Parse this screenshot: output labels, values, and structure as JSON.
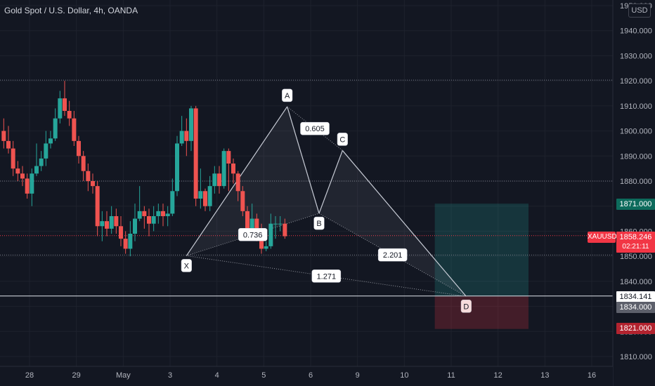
{
  "header": {
    "title": "Gold Spot / U.S. Dollar, 4h, OANDA",
    "currency": "USD"
  },
  "price_tags": {
    "symbol": "XAUUSD",
    "last_price": "1858.246",
    "countdown": "02:21:11",
    "take_profit": "1871.000",
    "line_price": "1834.141",
    "entry": "1834.000",
    "stop_loss": "1821.000"
  },
  "colors": {
    "background": "#131722",
    "grid": "#1e222d",
    "up": "#26a69a",
    "down": "#ef5350",
    "pattern_line": "#c8ccd6",
    "tp_zone": "#26a69a",
    "sl_zone": "#f23645",
    "price_label": "#f23645"
  },
  "chart_data": {
    "type": "candlestick",
    "title": "Gold Spot / U.S. Dollar, 4h, OANDA",
    "ylim": [
      1804,
      1960
    ],
    "xlim": [
      0,
      135
    ],
    "y_ticks": [
      1810,
      1820,
      1830,
      1840,
      1850,
      1860,
      1870,
      1880,
      1890,
      1900,
      1910,
      1920,
      1930,
      1940,
      1950
    ],
    "y_tick_labels": [
      "1810.000",
      "1820.000",
      "1830.000",
      "1840.000",
      "1850.000",
      "1860.000",
      "1870.000",
      "1880.000",
      "1890.000",
      "1900.000",
      "1910.000",
      "1920.000",
      "1930.000",
      "1940.000",
      "1950.000"
    ],
    "x_ticks": [
      {
        "label": "28",
        "x": 6
      },
      {
        "label": "29",
        "x": 16
      },
      {
        "label": "May",
        "x": 26
      },
      {
        "label": "3",
        "x": 36
      },
      {
        "label": "4",
        "x": 46
      },
      {
        "label": "5",
        "x": 56
      },
      {
        "label": "6",
        "x": 66
      },
      {
        "label": "9",
        "x": 76
      },
      {
        "label": "10",
        "x": 86
      },
      {
        "label": "11",
        "x": 96
      },
      {
        "label": "12",
        "x": 106
      },
      {
        "label": "13",
        "x": 116
      },
      {
        "label": "16",
        "x": 126
      }
    ],
    "candles": [
      [
        1900,
        1896,
        1905,
        1893
      ],
      [
        1896,
        1893,
        1902,
        1891
      ],
      [
        1893,
        1885,
        1896,
        1882
      ],
      [
        1885,
        1883,
        1888,
        1880
      ],
      [
        1883,
        1881,
        1886,
        1878
      ],
      [
        1881,
        1875,
        1883,
        1873
      ],
      [
        1875,
        1883,
        1885,
        1870
      ],
      [
        1883,
        1886,
        1895,
        1882
      ],
      [
        1886,
        1889,
        1892,
        1884
      ],
      [
        1889,
        1895,
        1900,
        1886
      ],
      [
        1895,
        1897,
        1900,
        1893
      ],
      [
        1897,
        1905,
        1909,
        1896
      ],
      [
        1905,
        1913,
        1916,
        1903
      ],
      [
        1913,
        1908,
        1920,
        1906
      ],
      [
        1908,
        1905,
        1912,
        1902
      ],
      [
        1905,
        1896,
        1908,
        1894
      ],
      [
        1896,
        1890,
        1898,
        1887
      ],
      [
        1890,
        1884,
        1892,
        1880
      ],
      [
        1884,
        1880,
        1887,
        1876
      ],
      [
        1880,
        1878,
        1883,
        1875
      ],
      [
        1878,
        1862,
        1880,
        1858
      ],
      [
        1862,
        1864,
        1868,
        1856
      ],
      [
        1864,
        1861,
        1868,
        1858
      ],
      [
        1861,
        1866,
        1870,
        1859
      ],
      [
        1866,
        1862,
        1869,
        1859
      ],
      [
        1862,
        1857,
        1866,
        1854
      ],
      [
        1857,
        1853,
        1860,
        1851
      ],
      [
        1853,
        1859,
        1864,
        1850
      ],
      [
        1859,
        1865,
        1871,
        1856
      ],
      [
        1865,
        1868,
        1878,
        1864
      ],
      [
        1868,
        1866,
        1870,
        1861
      ],
      [
        1866,
        1863,
        1869,
        1858
      ],
      [
        1863,
        1866,
        1870,
        1860
      ],
      [
        1866,
        1868,
        1871,
        1863
      ],
      [
        1868,
        1866,
        1871,
        1862
      ],
      [
        1866,
        1867,
        1870,
        1862
      ],
      [
        1867,
        1876,
        1881,
        1866
      ],
      [
        1876,
        1895,
        1898,
        1874
      ],
      [
        1895,
        1900,
        1906,
        1894
      ],
      [
        1900,
        1896,
        1905,
        1890
      ],
      [
        1896,
        1909,
        1910,
        1892
      ],
      [
        1909,
        1873,
        1910,
        1870
      ],
      [
        1873,
        1876,
        1885,
        1869
      ],
      [
        1876,
        1870,
        1877,
        1868
      ],
      [
        1870,
        1878,
        1882,
        1868
      ],
      [
        1878,
        1883,
        1886,
        1875
      ],
      [
        1883,
        1878,
        1886,
        1875
      ],
      [
        1878,
        1892,
        1893,
        1877
      ],
      [
        1892,
        1887,
        1893,
        1876
      ],
      [
        1887,
        1883,
        1889,
        1879
      ],
      [
        1883,
        1876,
        1884,
        1872
      ],
      [
        1876,
        1868,
        1878,
        1866
      ],
      [
        1868,
        1861,
        1870,
        1857
      ],
      [
        1861,
        1865,
        1871,
        1858
      ],
      [
        1865,
        1860,
        1867,
        1856
      ],
      [
        1860,
        1853,
        1863,
        1851
      ],
      [
        1853,
        1854,
        1856,
        1852
      ],
      [
        1854,
        1863,
        1867,
        1853
      ],
      [
        1863,
        1863,
        1866,
        1857
      ],
      [
        1863,
        1863,
        1866,
        1860
      ],
      [
        1863,
        1858,
        1865,
        1857
      ]
    ],
    "candle_start_x": 0.5,
    "harmonic_pattern": {
      "points": [
        {
          "label": "X",
          "x": 39.5,
          "y": 1850.2
        },
        {
          "label": "A",
          "x": 61.0,
          "y": 1909.7
        },
        {
          "label": "B",
          "x": 67.8,
          "y": 1867.1
        },
        {
          "label": "C",
          "x": 72.8,
          "y": 1892.2
        },
        {
          "label": "D",
          "x": 99.2,
          "y": 1834.0
        }
      ],
      "ratios": [
        {
          "label": "0.736",
          "between": [
            "X",
            "B"
          ]
        },
        {
          "label": "0.605",
          "between": [
            "A",
            "C"
          ]
        },
        {
          "label": "2.201",
          "between": [
            "B",
            "D"
          ]
        },
        {
          "label": "1.271",
          "between": [
            "X",
            "D"
          ]
        }
      ]
    },
    "position": {
      "entry": 1834.0,
      "take_profit": 1871.0,
      "stop_loss": 1821.0,
      "x_start": 92.5,
      "x_end": 112.5
    },
    "horizontal_lines": [
      {
        "y": 1920.3,
        "style": "dotted"
      },
      {
        "y": 1880.0,
        "style": "dotted"
      },
      {
        "y": 1858.246,
        "style": "dotted-red"
      },
      {
        "y": 1850.5,
        "style": "dotted"
      },
      {
        "y": 1834.141,
        "style": "solid-white"
      }
    ]
  }
}
